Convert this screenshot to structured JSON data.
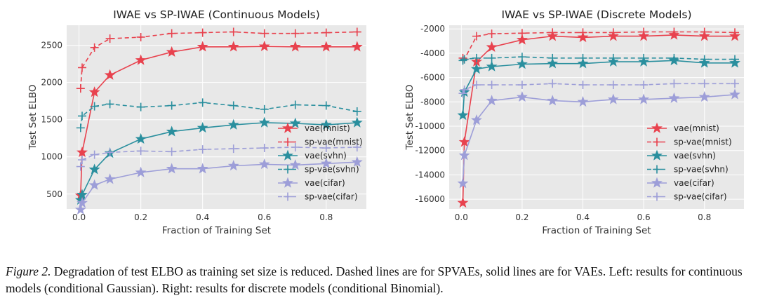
{
  "caption": {
    "label": "Figure 2.",
    "text": "Degradation of test ELBO as training set size is reduced. Dashed lines are for SPVAEs, solid lines are for VAEs. Left: results for continuous models (conditional Gaussian). Right: results for discrete models (conditional Binomial)."
  },
  "colors": {
    "mnist": "#e8424e",
    "svhn": "#2a8f9e",
    "cifar": "#9d9ed8",
    "panel_bg": "#e8e8e8",
    "grid": "#ffffff"
  },
  "chart_data": [
    {
      "type": "line",
      "title": "IWAE vs SP-IWAE (Continuous Models)",
      "xlabel": "Fraction of Training Set",
      "ylabel": "Test Set ELBO",
      "xlim": [
        -0.04,
        0.93
      ],
      "ylim": [
        300,
        2770
      ],
      "xticks": [
        0.0,
        0.2,
        0.4,
        0.6,
        0.8
      ],
      "xtick_labels": [
        "0.0",
        "0.2",
        "0.4",
        "0.6",
        "0.8"
      ],
      "yticks": [
        500,
        1000,
        1500,
        2000,
        2500
      ],
      "ytick_labels": [
        "500",
        "1000",
        "1500",
        "2000",
        "2500"
      ],
      "legend_position": "lower-right",
      "x": [
        0.005,
        0.01,
        0.05,
        0.1,
        0.2,
        0.3,
        0.4,
        0.5,
        0.6,
        0.7,
        0.8,
        0.9
      ],
      "series": [
        {
          "name": "vae(mnist)",
          "color_key": "mnist",
          "style": "solid",
          "marker": "star",
          "values": [
            480,
            1060,
            1870,
            2100,
            2300,
            2410,
            2480,
            2480,
            2485,
            2480,
            2480,
            2480
          ]
        },
        {
          "name": "sp-vae(mnist)",
          "color_key": "mnist",
          "style": "dashed",
          "marker": "plus",
          "values": [
            1920,
            2200,
            2470,
            2590,
            2610,
            2660,
            2670,
            2680,
            2660,
            2660,
            2670,
            2680
          ]
        },
        {
          "name": "vae(svhn)",
          "color_key": "svhn",
          "style": "solid",
          "marker": "star",
          "values": [
            420,
            490,
            830,
            1050,
            1240,
            1340,
            1390,
            1430,
            1460,
            1450,
            1430,
            1460
          ]
        },
        {
          "name": "sp-vae(svhn)",
          "color_key": "svhn",
          "style": "dashed",
          "marker": "plus",
          "values": [
            1390,
            1550,
            1680,
            1710,
            1670,
            1690,
            1730,
            1690,
            1640,
            1700,
            1690,
            1610
          ]
        },
        {
          "name": "vae(cifar)",
          "color_key": "cifar",
          "style": "solid",
          "marker": "star",
          "values": [
            290,
            380,
            620,
            700,
            790,
            840,
            840,
            880,
            900,
            890,
            910,
            930
          ]
        },
        {
          "name": "sp-vae(cifar)",
          "color_key": "cifar",
          "style": "dashed",
          "marker": "plus",
          "values": [
            870,
            960,
            1030,
            1060,
            1080,
            1070,
            1100,
            1110,
            1120,
            1130,
            1120,
            1130
          ]
        }
      ]
    },
    {
      "type": "line",
      "title": "IWAE vs SP-IWAE (Discrete Models)",
      "xlabel": "Fraction of Training Set",
      "ylabel": "Test Set ELBO",
      "xlim": [
        -0.04,
        0.93
      ],
      "ylim": [
        -16800,
        -1700
      ],
      "xticks": [
        0.0,
        0.2,
        0.4,
        0.6,
        0.8
      ],
      "xtick_labels": [
        "0.0",
        "0.2",
        "0.4",
        "0.6",
        "0.8"
      ],
      "yticks": [
        -16000,
        -14000,
        -12000,
        -10000,
        -8000,
        -6000,
        -4000,
        -2000
      ],
      "ytick_labels": [
        "-16000",
        "-14000",
        "-12000",
        "-10000",
        "-8000",
        "-6000",
        "-4000",
        "-2000"
      ],
      "legend_position": "lower-right",
      "x": [
        0.005,
        0.01,
        0.05,
        0.1,
        0.2,
        0.3,
        0.4,
        0.5,
        0.6,
        0.7,
        0.8,
        0.9
      ],
      "series": [
        {
          "name": "vae(mnist)",
          "color_key": "mnist",
          "style": "solid",
          "marker": "star",
          "values": [
            -16300,
            -11300,
            -4700,
            -3500,
            -2900,
            -2600,
            -2700,
            -2600,
            -2600,
            -2500,
            -2600,
            -2600
          ]
        },
        {
          "name": "sp-vae(mnist)",
          "color_key": "mnist",
          "style": "dashed",
          "marker": "plus",
          "values": [
            -4400,
            -4500,
            -2600,
            -2400,
            -2350,
            -2300,
            -2300,
            -2300,
            -2250,
            -2250,
            -2250,
            -2300
          ]
        },
        {
          "name": "vae(svhn)",
          "color_key": "svhn",
          "style": "solid",
          "marker": "star",
          "values": [
            -9100,
            -7200,
            -5300,
            -5100,
            -4900,
            -4850,
            -4850,
            -4700,
            -4700,
            -4600,
            -4800,
            -4800
          ]
        },
        {
          "name": "sp-vae(svhn)",
          "color_key": "svhn",
          "style": "dashed",
          "marker": "plus",
          "values": [
            -4600,
            -4500,
            -4400,
            -4400,
            -4300,
            -4400,
            -4400,
            -4400,
            -4400,
            -4400,
            -4500,
            -4500
          ]
        },
        {
          "name": "vae(cifar)",
          "color_key": "cifar",
          "style": "solid",
          "marker": "star",
          "values": [
            -14700,
            -12400,
            -9500,
            -7900,
            -7600,
            -7900,
            -8000,
            -7800,
            -7800,
            -7700,
            -7600,
            -7400
          ]
        },
        {
          "name": "sp-vae(cifar)",
          "color_key": "cifar",
          "style": "dashed",
          "marker": "plus",
          "values": [
            -7300,
            -7000,
            -6600,
            -6600,
            -6600,
            -6500,
            -6600,
            -6600,
            -6600,
            -6500,
            -6500,
            -6500
          ]
        }
      ]
    }
  ]
}
